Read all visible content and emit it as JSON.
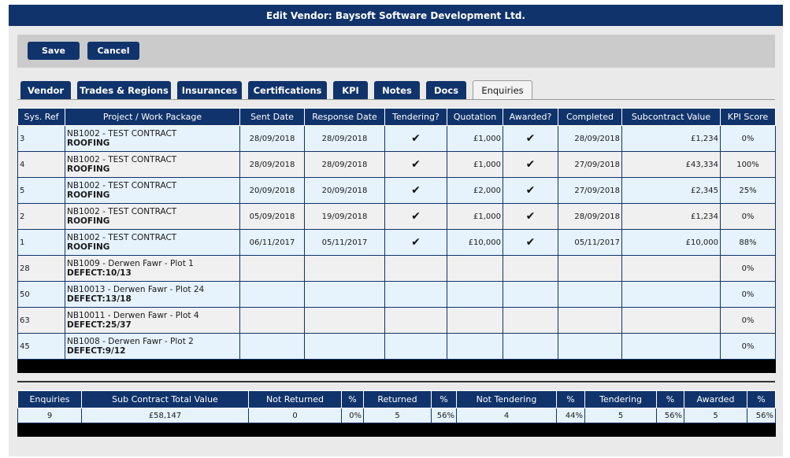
{
  "window": {
    "title": "Edit Vendor: Baysoft Software Development Ltd."
  },
  "toolbar": {
    "save_label": "Save",
    "cancel_label": "Cancel"
  },
  "tabs": [
    "Vendor",
    "Trades & Regions",
    "Insurances",
    "Certifications",
    "KPI",
    "Notes",
    "Docs",
    "Enquiries"
  ],
  "active_tab": "Enquiries",
  "enquiries": {
    "headers": [
      "Sys. Ref",
      "Project / Work Package",
      "Sent Date",
      "Response Date",
      "Tendering?",
      "Quotation",
      "Awarded?",
      "Completed",
      "Subcontract Value",
      "KPI Score"
    ],
    "tick_glyph": "✔",
    "rows": [
      {
        "ref": "3",
        "project": "NB1002 - TEST CONTRACT",
        "package": "ROOFING",
        "sent": "28/09/2018",
        "response": "28/09/2018",
        "tendering": true,
        "quotation": "£1,000",
        "awarded": true,
        "completed": "28/09/2018",
        "value": "£1,234",
        "kpi": "0%"
      },
      {
        "ref": "4",
        "project": "NB1002 - TEST CONTRACT",
        "package": "ROOFING",
        "sent": "28/09/2018",
        "response": "28/09/2018",
        "tendering": true,
        "quotation": "£1,000",
        "awarded": true,
        "completed": "27/09/2018",
        "value": "£43,334",
        "kpi": "100%"
      },
      {
        "ref": "5",
        "project": "NB1002 - TEST CONTRACT",
        "package": "ROOFING",
        "sent": "20/09/2018",
        "response": "20/09/2018",
        "tendering": true,
        "quotation": "£2,000",
        "awarded": true,
        "completed": "27/09/2018",
        "value": "£2,345",
        "kpi": "25%"
      },
      {
        "ref": "2",
        "project": "NB1002 - TEST CONTRACT",
        "package": "ROOFING",
        "sent": "05/09/2018",
        "response": "19/09/2018",
        "tendering": true,
        "quotation": "£1,000",
        "awarded": true,
        "completed": "28/09/2018",
        "value": "£1,234",
        "kpi": "0%"
      },
      {
        "ref": "1",
        "project": "NB1002 - TEST CONTRACT",
        "package": "ROOFING",
        "sent": "06/11/2017",
        "response": "05/11/2017",
        "tendering": true,
        "quotation": "£10,000",
        "awarded": true,
        "completed": "05/11/2017",
        "value": "£10,000",
        "kpi": "88%"
      },
      {
        "ref": "28",
        "project": "NB1009 - Derwen Fawr - Plot 1",
        "package": "DEFECT:10/13",
        "sent": "",
        "response": "",
        "tendering": false,
        "quotation": "",
        "awarded": false,
        "completed": "",
        "value": "",
        "kpi": "0%"
      },
      {
        "ref": "50",
        "project": "NB10013 - Derwen Fawr - Plot 24",
        "package": "DEFECT:13/18",
        "sent": "",
        "response": "",
        "tendering": false,
        "quotation": "",
        "awarded": false,
        "completed": "",
        "value": "",
        "kpi": "0%"
      },
      {
        "ref": "63",
        "project": "NB10011 - Derwen Fawr - Plot 4",
        "package": "DEFECT:25/37",
        "sent": "",
        "response": "",
        "tendering": false,
        "quotation": "",
        "awarded": false,
        "completed": "",
        "value": "",
        "kpi": "0%"
      },
      {
        "ref": "45",
        "project": "NB1008 - Derwen Fawr - Plot 2",
        "package": "DEFECT:9/12",
        "sent": "",
        "response": "",
        "tendering": false,
        "quotation": "",
        "awarded": false,
        "completed": "",
        "value": "",
        "kpi": "0%"
      }
    ]
  },
  "summary": {
    "headers": [
      "Enquiries",
      "Sub Contract Total Value",
      "Not Returned",
      "%",
      "Returned",
      "%",
      "Not Tendering",
      "%",
      "Tendering",
      "%",
      "Awarded",
      "%"
    ],
    "values": [
      "9",
      "£58,147",
      "0",
      "0%",
      "5",
      "56%",
      "4",
      "44%",
      "5",
      "56%",
      "5",
      "56%"
    ]
  }
}
